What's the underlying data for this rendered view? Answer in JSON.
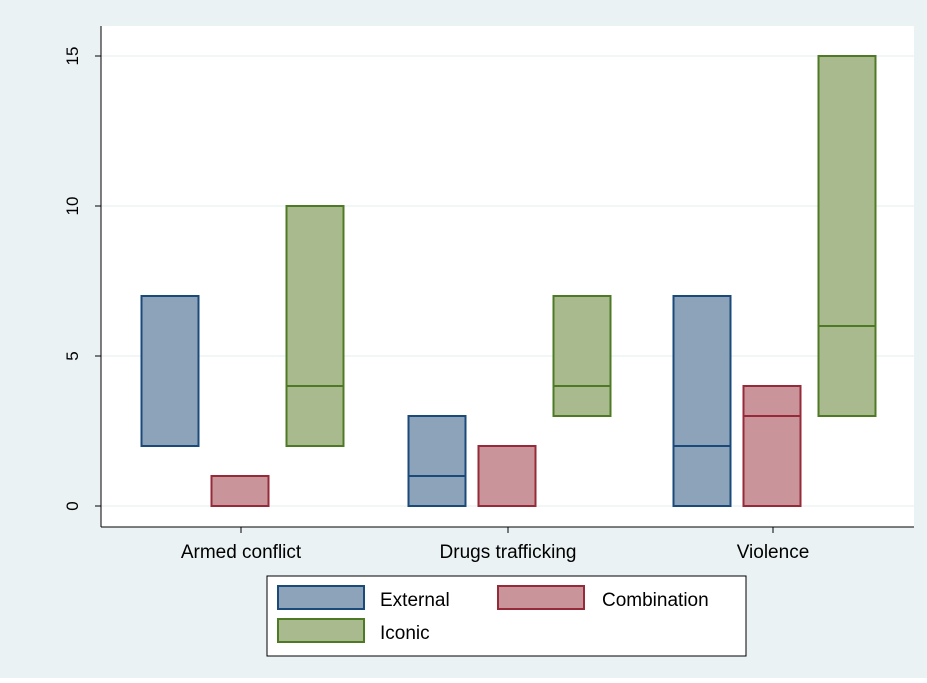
{
  "chart_data": {
    "type": "box",
    "categories": [
      "Armed conflict",
      "Drugs trafficking",
      "Violence"
    ],
    "ylim": [
      0,
      15
    ],
    "yticks": [
      0,
      5,
      10,
      15
    ],
    "grid": true,
    "legend_position": "bottom",
    "series": [
      {
        "name": "External",
        "color": "#8da3ba",
        "stroke": "#1a4a7a",
        "boxes": [
          {
            "low": 2,
            "median": 2,
            "high": 7
          },
          {
            "low": 0,
            "median": 1,
            "high": 3
          },
          {
            "low": 0,
            "median": 2,
            "high": 7
          }
        ]
      },
      {
        "name": "Combination",
        "color": "#c9959a",
        "stroke": "#962a38",
        "boxes": [
          {
            "low": 0,
            "median": 0,
            "high": 1
          },
          {
            "low": 0,
            "median": 0,
            "high": 2
          },
          {
            "low": 0,
            "median": 3,
            "high": 4
          }
        ]
      },
      {
        "name": "Iconic",
        "color": "#a9ba8f",
        "stroke": "#4e7a25",
        "boxes": [
          {
            "low": 2,
            "median": 4,
            "high": 10
          },
          {
            "low": 3,
            "median": 4,
            "high": 7
          },
          {
            "low": 3,
            "median": 6,
            "high": 15
          }
        ]
      }
    ],
    "colors": {
      "outer_background": "#eaf2f3",
      "plot_background": "#ffffff",
      "gridline": "#e3ecee",
      "axis": "#000000"
    }
  }
}
